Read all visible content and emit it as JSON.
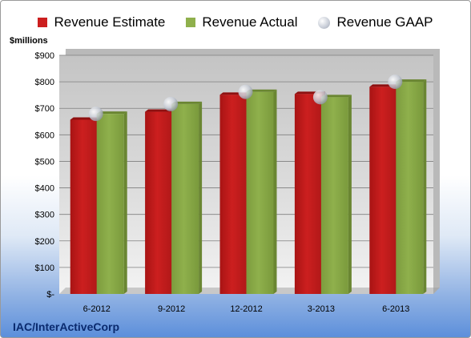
{
  "legend": {
    "estimate": "Revenue Estimate",
    "actual": "Revenue Actual",
    "gaap": "Revenue GAAP"
  },
  "unit_label": "$millions",
  "company": "IAC/InterActiveCorp",
  "colors": {
    "estimate": "#cc1f1f",
    "actual": "#8fb04c",
    "gaap": "#c7ccd6",
    "plot_top": "#c4c4c4",
    "plot_bottom": "#f3f3f3"
  },
  "chart_data": {
    "type": "bar",
    "categories": [
      "6-2012",
      "9-2012",
      "12-2012",
      "3-2013",
      "6-2013"
    ],
    "series": [
      {
        "name": "Revenue Estimate",
        "type": "bar",
        "values": [
          657,
          687,
          751,
          754,
          781
        ]
      },
      {
        "name": "Revenue Actual",
        "type": "bar",
        "values": [
          679,
          716,
          762,
          742,
          800
        ]
      },
      {
        "name": "Revenue GAAP",
        "type": "scatter",
        "values": [
          679,
          716,
          762,
          742,
          800
        ]
      }
    ],
    "ylabel": "$millions",
    "ylim": [
      0,
      900
    ],
    "yticks": [
      "$-",
      "$100",
      "$200",
      "$300",
      "$400",
      "$500",
      "$600",
      "$700",
      "$800",
      "$900"
    ],
    "ytick_values": [
      0,
      100,
      200,
      300,
      400,
      500,
      600,
      700,
      800,
      900
    ],
    "grid": true,
    "legend_position": "top"
  }
}
